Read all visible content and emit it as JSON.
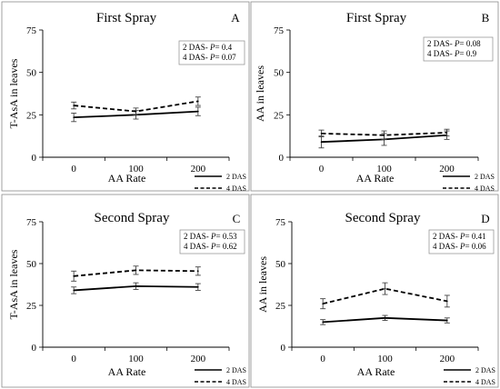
{
  "chart_data": [
    {
      "type": "line",
      "panel_letter": "A",
      "title": "First Spray",
      "xlabel": "AA Rate",
      "ylabel": "T-AsA in leaves",
      "categories": [
        "0",
        "100",
        "200"
      ],
      "ylim": [
        0,
        75
      ],
      "yticks": [
        "0",
        "25",
        "50",
        "75"
      ],
      "grid": false,
      "legend_position": "bottom-right",
      "stats": [
        {
          "prefix": "2 DAS- ",
          "p": "P",
          "suffix": "= 0.4"
        },
        {
          "prefix": "4 DAS- ",
          "p": "P",
          "suffix": "= 0.07"
        }
      ],
      "series": [
        {
          "name": "2 DAS",
          "style": "solid",
          "values": [
            23.5,
            25,
            27
          ],
          "errors": [
            2.5,
            2.5,
            2.5
          ]
        },
        {
          "name": "4 DAS",
          "style": "dashed",
          "values": [
            30.5,
            27,
            33
          ],
          "errors": [
            2,
            2,
            2.5
          ]
        }
      ]
    },
    {
      "type": "line",
      "panel_letter": "B",
      "title": "First Spray",
      "xlabel": "AA Rate",
      "ylabel": "AA in leaves",
      "categories": [
        "0",
        "100",
        "200"
      ],
      "ylim": [
        0,
        75
      ],
      "yticks": [
        "0",
        "25",
        "50",
        "75"
      ],
      "grid": false,
      "legend_position": "bottom-right",
      "stats": [
        {
          "prefix": "2 DAS- ",
          "p": "P",
          "suffix": "= 0.08"
        },
        {
          "prefix": "4 DAS- ",
          "p": "P",
          "suffix": "= 0.9"
        }
      ],
      "series": [
        {
          "name": "2 DAS",
          "style": "solid",
          "values": [
            9,
            10.5,
            13
          ],
          "errors": [
            3.5,
            3.5,
            2.5
          ]
        },
        {
          "name": "4 DAS",
          "style": "dashed",
          "values": [
            14,
            13,
            14.5
          ],
          "errors": [
            2,
            2.5,
            2
          ]
        }
      ]
    },
    {
      "type": "line",
      "panel_letter": "C",
      "title": "Second Spray",
      "xlabel": "AA Rate",
      "ylabel": "T-AsA in leaves",
      "categories": [
        "0",
        "100",
        "200"
      ],
      "ylim": [
        0,
        75
      ],
      "yticks": [
        "0",
        "25",
        "50",
        "75"
      ],
      "grid": false,
      "legend_position": "bottom-right",
      "stats": [
        {
          "prefix": "2 DAS- ",
          "p": "P",
          "suffix": "= 0.53"
        },
        {
          "prefix": "4 DAS- ",
          "p": "P",
          "suffix": "= 0.62"
        }
      ],
      "series": [
        {
          "name": "2 DAS",
          "style": "solid",
          "values": [
            34,
            36.5,
            36
          ],
          "errors": [
            2,
            2,
            2
          ]
        },
        {
          "name": "4 DAS",
          "style": "dashed",
          "values": [
            42.5,
            46,
            45.5
          ],
          "errors": [
            3,
            2.5,
            2.5
          ]
        }
      ]
    },
    {
      "type": "line",
      "panel_letter": "D",
      "title": "Second Spray",
      "xlabel": "AA Rate",
      "ylabel": "AA in leaves",
      "categories": [
        "0",
        "100",
        "200"
      ],
      "ylim": [
        0,
        75
      ],
      "yticks": [
        "0",
        "25",
        "50",
        "75"
      ],
      "grid": false,
      "legend_position": "bottom-right",
      "stats": [
        {
          "prefix": "2 DAS- ",
          "p": "P",
          "suffix": "= 0.41"
        },
        {
          "prefix": "4 DAS- ",
          "p": "P",
          "suffix": "= 0.06"
        }
      ],
      "series": [
        {
          "name": "2 DAS",
          "style": "solid",
          "values": [
            15,
            17.5,
            16
          ],
          "errors": [
            1.5,
            1.5,
            1.5
          ]
        },
        {
          "name": "4 DAS",
          "style": "dashed",
          "values": [
            26,
            35,
            27.5
          ],
          "errors": [
            3,
            3.5,
            3.5
          ]
        }
      ]
    }
  ]
}
